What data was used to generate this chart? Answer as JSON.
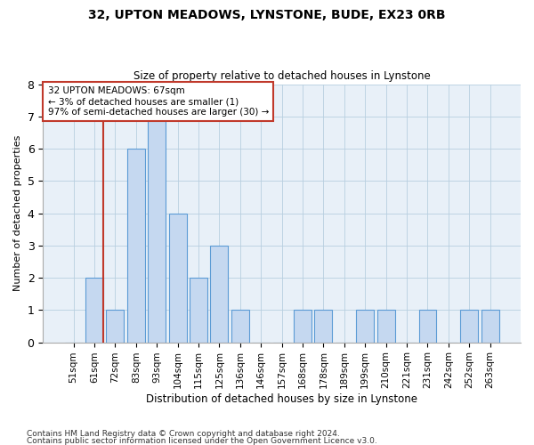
{
  "title1": "32, UPTON MEADOWS, LYNSTONE, BUDE, EX23 0RB",
  "title2": "Size of property relative to detached houses in Lynstone",
  "xlabel": "Distribution of detached houses by size in Lynstone",
  "ylabel": "Number of detached properties",
  "categories": [
    "51sqm",
    "61sqm",
    "72sqm",
    "83sqm",
    "93sqm",
    "104sqm",
    "115sqm",
    "125sqm",
    "136sqm",
    "146sqm",
    "157sqm",
    "168sqm",
    "178sqm",
    "189sqm",
    "199sqm",
    "210sqm",
    "221sqm",
    "231sqm",
    "242sqm",
    "252sqm",
    "263sqm"
  ],
  "values": [
    0,
    2,
    1,
    6,
    7,
    4,
    2,
    3,
    1,
    0,
    0,
    1,
    1,
    0,
    1,
    1,
    0,
    1,
    0,
    1,
    1
  ],
  "bar_color": "#c5d8f0",
  "bar_edge_color": "#5b9bd5",
  "subject_line_color": "#c0392b",
  "annotation_line1": "32 UPTON MEADOWS: 67sqm",
  "annotation_line2": "← 3% of detached houses are smaller (1)",
  "annotation_line3": "97% of semi-detached houses are larger (30) →",
  "annotation_box_color": "#c0392b",
  "ylim": [
    0,
    8
  ],
  "yticks": [
    0,
    1,
    2,
    3,
    4,
    5,
    6,
    7,
    8
  ],
  "footnote1": "Contains HM Land Registry data © Crown copyright and database right 2024.",
  "footnote2": "Contains public sector information licensed under the Open Government Licence v3.0.",
  "grid_color": "#b8cfe0",
  "background_color": "#e8f0f8"
}
